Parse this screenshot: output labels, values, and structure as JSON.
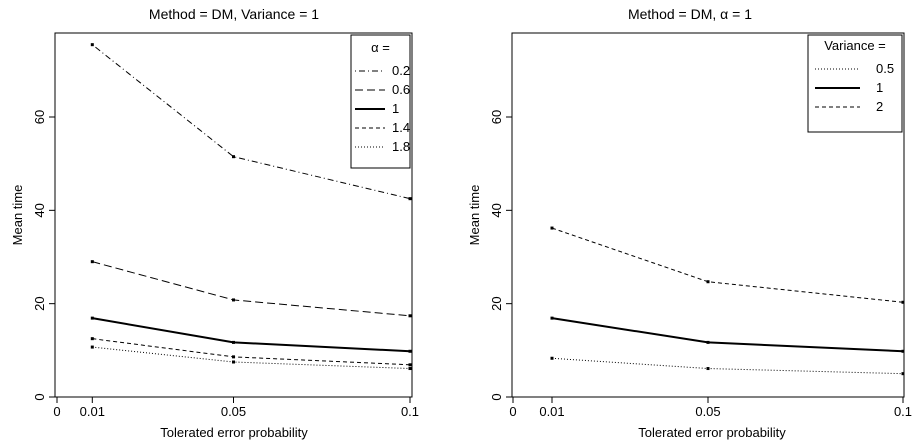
{
  "chart_data": [
    {
      "type": "line",
      "title": "Method = DM, Variance = 1",
      "xlabel": "Tolerated error probability",
      "ylabel": "Mean time",
      "x": [
        0.01,
        0.05,
        0.1
      ],
      "xticks": [
        0,
        0.01,
        0.05,
        0.1
      ],
      "xtick_labels": [
        "0",
        "0.01",
        "0.05",
        "0.1"
      ],
      "yticks": [
        0,
        20,
        40,
        60
      ],
      "ytick_labels": [
        "0",
        "20",
        "40",
        "60"
      ],
      "xlim": [
        0,
        0.1
      ],
      "ylim": [
        0,
        78
      ],
      "grid": false,
      "legend_title": "α =",
      "legend_position": "top-right",
      "series": [
        {
          "name": "0.2",
          "values": [
            75.5,
            51.5,
            42.5
          ],
          "dash": "dotdash",
          "width": 1
        },
        {
          "name": "0.6",
          "values": [
            29,
            20.8,
            17.4
          ],
          "dash": "longdash",
          "width": 1
        },
        {
          "name": "1",
          "values": [
            16.9,
            11.7,
            9.8
          ],
          "dash": "solid",
          "width": 2
        },
        {
          "name": "1.4",
          "values": [
            12.5,
            8.6,
            6.9
          ],
          "dash": "dashed",
          "width": 1
        },
        {
          "name": "1.8",
          "values": [
            10.7,
            7.5,
            6.1
          ],
          "dash": "dotted",
          "width": 1
        }
      ]
    },
    {
      "type": "line",
      "title": "Method = DM, α = 1",
      "xlabel": "Tolerated error probability",
      "ylabel": "Mean time",
      "x": [
        0.01,
        0.05,
        0.1
      ],
      "xticks": [
        0,
        0.01,
        0.05,
        0.1
      ],
      "xtick_labels": [
        "0",
        "0.01",
        "0.05",
        "0.1"
      ],
      "yticks": [
        0,
        20,
        40,
        60
      ],
      "ytick_labels": [
        "0",
        "20",
        "40",
        "60"
      ],
      "xlim": [
        0,
        0.1
      ],
      "ylim": [
        0,
        78
      ],
      "grid": false,
      "legend_title": "Variance =",
      "legend_position": "top-right",
      "series": [
        {
          "name": "0.5",
          "values": [
            8.3,
            6.1,
            5
          ],
          "dash": "dotted",
          "width": 1
        },
        {
          "name": "1",
          "values": [
            16.9,
            11.7,
            9.8
          ],
          "dash": "solid",
          "width": 2
        },
        {
          "name": "2",
          "values": [
            36.2,
            24.7,
            20.3
          ],
          "dash": "dashed",
          "width": 1
        }
      ]
    }
  ]
}
